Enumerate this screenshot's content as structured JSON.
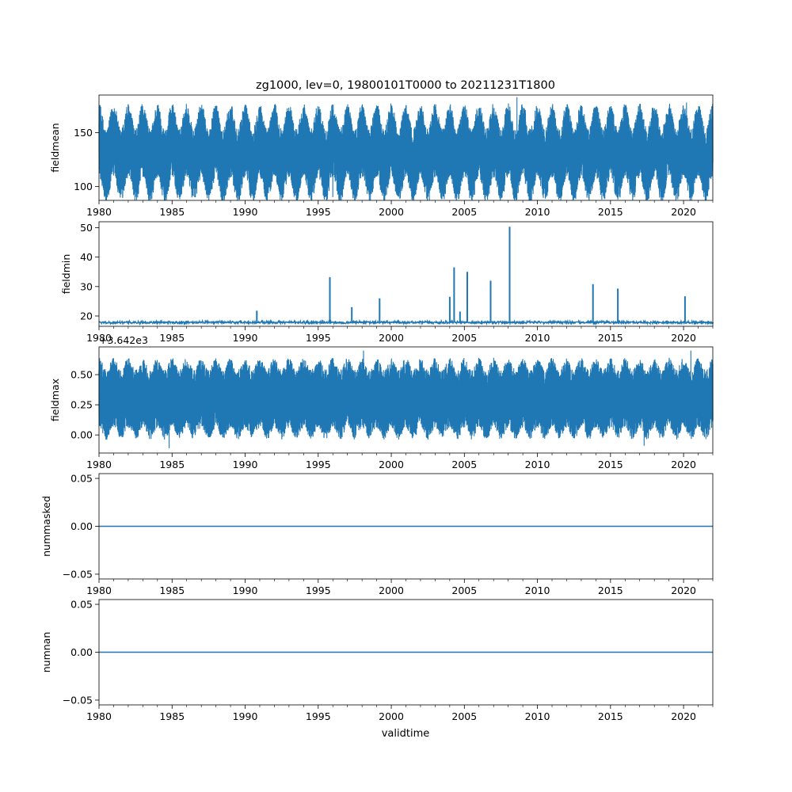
{
  "figure": {
    "title": "zg1000, lev=0, 19800101T0000 to 20211231T1800",
    "xlabel": "validtime"
  },
  "chart_data": [
    {
      "type": "line",
      "ylabel": "fieldmean",
      "xlim": [
        1980,
        2022
      ],
      "ylim": [
        87,
        185
      ],
      "x_ticks": [
        "1980",
        "1985",
        "1990",
        "1995",
        "2000",
        "2005",
        "2010",
        "2015",
        "2020"
      ],
      "y_ticks": [
        "100",
        "150"
      ],
      "offset_text": "",
      "series": [
        {
          "color": "#1f77b4",
          "description_values": {
            "mean_level": 131,
            "seasonal_amplitude": 12,
            "typical_min": 101,
            "typical_max": 170,
            "extremes": [
              {
                "x": 1985.5,
                "y": 92
              },
              {
                "x": 1996.0,
                "y": 90
              },
              {
                "x": 2008.6,
                "y": 183
              },
              {
                "x": 2020.2,
                "y": 178
              }
            ]
          }
        }
      ]
    },
    {
      "type": "line",
      "ylabel": "fieldmin",
      "xlim": [
        1980,
        2022
      ],
      "ylim": [
        16.5,
        52
      ],
      "x_ticks": [
        "1980",
        "1985",
        "1990",
        "1995",
        "2000",
        "2005",
        "2010",
        "2015",
        "2020"
      ],
      "y_ticks": [
        "20",
        "30",
        "40",
        "50"
      ],
      "offset_text": "",
      "series": [
        {
          "color": "#1f77b4",
          "description_values": {
            "baseline": 17.8,
            "spikes": [
              {
                "x": 1990.8,
                "y": 21.8
              },
              {
                "x": 1995.8,
                "y": 33.2
              },
              {
                "x": 1997.3,
                "y": 23.0
              },
              {
                "x": 1999.2,
                "y": 26.0
              },
              {
                "x": 2004.0,
                "y": 26.5
              },
              {
                "x": 2004.3,
                "y": 36.5
              },
              {
                "x": 2004.7,
                "y": 21.5
              },
              {
                "x": 2005.2,
                "y": 35.0
              },
              {
                "x": 2006.8,
                "y": 32.0
              },
              {
                "x": 2008.1,
                "y": 50.3
              },
              {
                "x": 2013.8,
                "y": 30.8
              },
              {
                "x": 2015.5,
                "y": 29.3
              },
              {
                "x": 2020.1,
                "y": 26.7
              }
            ]
          }
        }
      ]
    },
    {
      "type": "line",
      "ylabel": "fieldmax",
      "xlim": [
        1980,
        2022
      ],
      "ylim": [
        -0.15,
        0.73
      ],
      "x_ticks": [
        "1980",
        "1985",
        "1990",
        "1995",
        "2000",
        "2005",
        "2010",
        "2015",
        "2020"
      ],
      "y_ticks": [
        "0.00",
        "0.25",
        "0.50"
      ],
      "offset_text": "+3.642e3",
      "series": [
        {
          "color": "#1f77b4",
          "description_values": {
            "mean_level": 0.3,
            "typical_min": 0.02,
            "typical_max": 0.6,
            "extremes": [
              {
                "x": 1984.8,
                "y": -0.11
              },
              {
                "x": 2017.3,
                "y": -0.09
              },
              {
                "x": 1998.1,
                "y": 0.7
              },
              {
                "x": 2020.5,
                "y": 0.7
              }
            ]
          }
        }
      ]
    },
    {
      "type": "line",
      "ylabel": "nummasked",
      "xlim": [
        1980,
        2022
      ],
      "ylim": [
        -0.055,
        0.055
      ],
      "x_ticks": [
        "1980",
        "1985",
        "1990",
        "1995",
        "2000",
        "2005",
        "2010",
        "2015",
        "2020"
      ],
      "y_ticks": [
        "−0.05",
        "0.00",
        "0.05"
      ],
      "offset_text": "",
      "series": [
        {
          "color": "#1f77b4",
          "x": [
            1980,
            2022
          ],
          "values": [
            0,
            0
          ]
        }
      ]
    },
    {
      "type": "line",
      "ylabel": "numnan",
      "xlim": [
        1980,
        2022
      ],
      "ylim": [
        -0.055,
        0.055
      ],
      "x_ticks": [
        "1980",
        "1985",
        "1990",
        "1995",
        "2000",
        "2005",
        "2010",
        "2015",
        "2020"
      ],
      "y_ticks": [
        "−0.05",
        "0.00",
        "0.05"
      ],
      "offset_text": "",
      "series": [
        {
          "color": "#1f77b4",
          "x": [
            1980,
            2022
          ],
          "values": [
            0,
            0
          ]
        }
      ]
    }
  ]
}
